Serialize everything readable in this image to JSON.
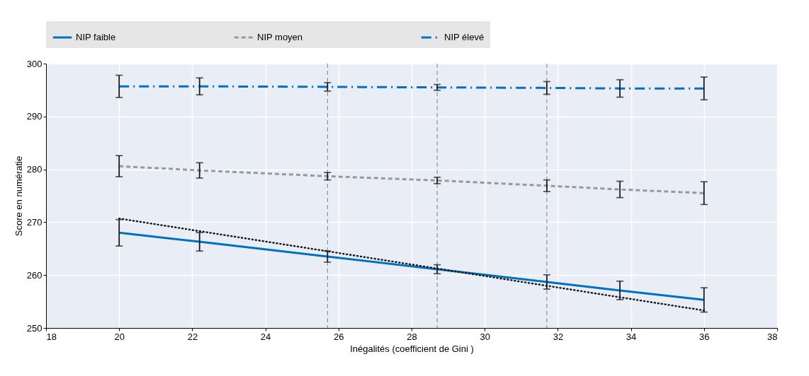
{
  "chart_data": {
    "type": "line",
    "x": [
      20,
      22.2,
      25.7,
      28.7,
      31.7,
      33.7,
      36
    ],
    "series": [
      {
        "name": "NIP faible",
        "color": "#0070c0",
        "line_style": "solid",
        "values": [
          268.0,
          266.3,
          263.5,
          261.1,
          258.7,
          257.1,
          255.3
        ],
        "errors": [
          2.5,
          1.75,
          1.05,
          0.85,
          1.35,
          1.75,
          2.3
        ]
      },
      {
        "name": "NIP moyen",
        "color": "#999999",
        "line_style": "dashed",
        "values": [
          280.6,
          279.8,
          278.7,
          277.9,
          276.9,
          276.2,
          275.5
        ],
        "errors": [
          2.0,
          1.45,
          0.7,
          0.6,
          1.1,
          1.55,
          2.15
        ]
      },
      {
        "name": "NIP élevé",
        "color": "#0070c0",
        "line_style": "dashdot",
        "values": [
          295.7,
          295.7,
          295.6,
          295.5,
          295.4,
          295.3,
          295.3
        ],
        "errors": [
          2.1,
          1.6,
          0.8,
          0.55,
          1.2,
          1.65,
          2.15
        ]
      },
      {
        "color": "#1a1a1a",
        "line_style": "dotted",
        "x": [
          20,
          36
        ],
        "values": [
          270.7,
          253.3
        ]
      }
    ],
    "xlabel": "Inégalités (coefficient de Gini )",
    "ylabel": "Score en numératie",
    "xlim": [
      18,
      38
    ],
    "xticks": [
      18,
      20,
      22,
      24,
      26,
      28,
      30,
      32,
      34,
      36,
      38
    ],
    "ylim": [
      250,
      300
    ],
    "yticks": [
      250,
      260,
      270,
      280,
      290,
      300
    ],
    "ref_lines": [
      {
        "axis": "x",
        "value": 25.7,
        "color": "#808080",
        "line_style": "dashed"
      },
      {
        "axis": "x",
        "value": 28.7,
        "color": "#808080",
        "line_style": "dashed"
      },
      {
        "axis": "x",
        "value": 31.7,
        "color": "#808080",
        "line_style": "dashed"
      }
    ],
    "grid": true,
    "legend": "top"
  }
}
